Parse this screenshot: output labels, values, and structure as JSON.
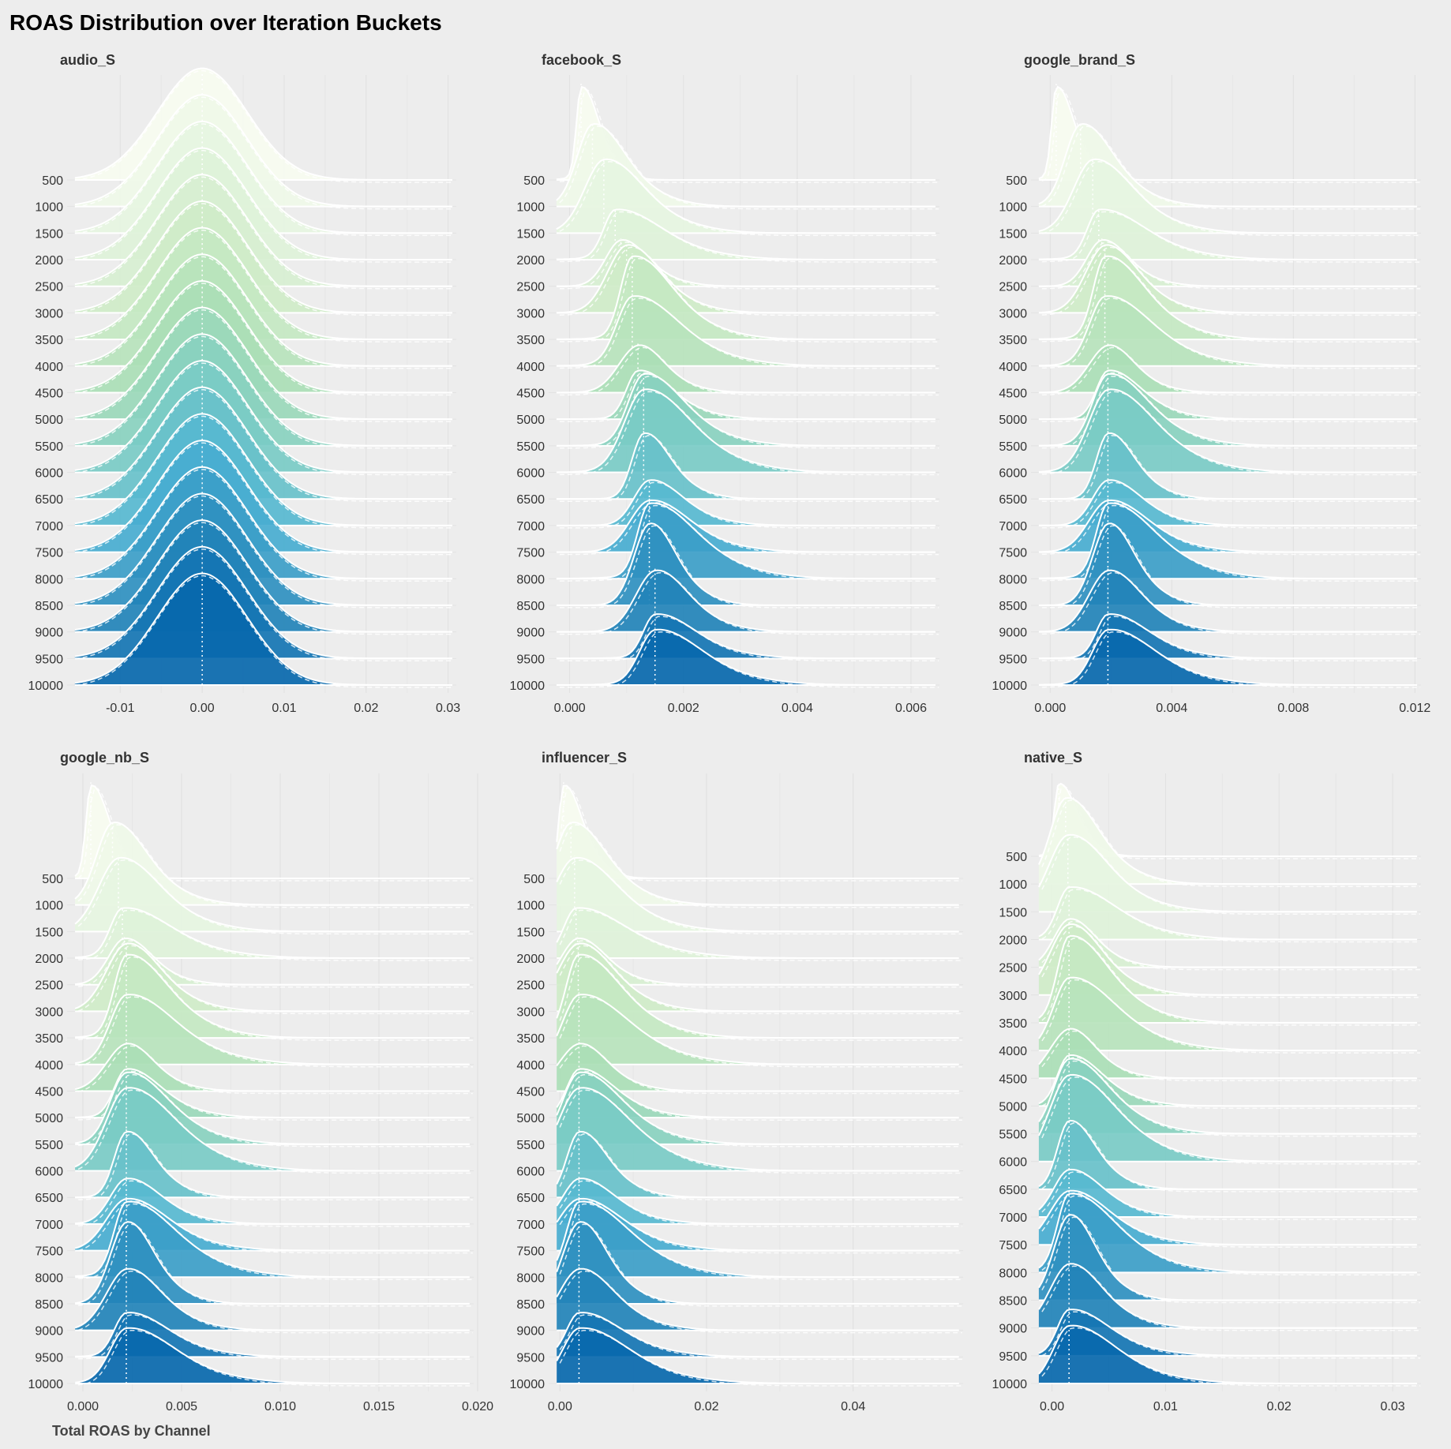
{
  "chart_data": {
    "type": "ridgeline",
    "title": "ROAS Distribution over Iteration Buckets",
    "xlabel": "Total ROAS by Channel",
    "ylabel": "",
    "iteration_buckets": [
      "500",
      "1000",
      "1500",
      "2000",
      "2500",
      "3000",
      "3500",
      "4000",
      "4500",
      "5000",
      "5500",
      "6000",
      "6500",
      "7000",
      "7500",
      "8000",
      "8500",
      "9000",
      "9500",
      "10000"
    ],
    "color_scale": [
      "#f7fcf0",
      "#e0f3db",
      "#ccebc5",
      "#a8ddb5",
      "#7bccc4",
      "#4eb3d3",
      "#2b8cbe",
      "#0868ac"
    ],
    "facets": [
      {
        "name": "audio_S",
        "xlim": [
          -0.016,
          0.031
        ],
        "ticks": [
          -0.01,
          0.0,
          0.01,
          0.02,
          0.03
        ],
        "tick_labels": [
          "-0.01",
          "0.00",
          "0.01",
          "0.02",
          "0.03"
        ],
        "peak": 0.0,
        "spread": "symmetric",
        "modes": [
          0.0,
          0.0,
          0.0,
          0.0,
          0.0,
          0.0,
          0.0,
          0.0,
          0.0,
          0.0,
          0.0,
          0.0,
          0.0,
          0.0,
          0.0,
          0.0,
          0.0,
          0.0,
          0.0,
          0.0
        ]
      },
      {
        "name": "facebook_S",
        "xlim": [
          -0.0003,
          0.0065
        ],
        "ticks": [
          0.0,
          0.002,
          0.004,
          0.006
        ],
        "tick_labels": [
          "0.000",
          "0.002",
          "0.004",
          "0.006"
        ],
        "peak": 0.0002,
        "modes": [
          0.0002,
          0.0004,
          0.0006,
          0.0008,
          0.0009,
          0.001,
          0.0011,
          0.0011,
          0.0012,
          0.0012,
          0.0013,
          0.0013,
          0.0013,
          0.0014,
          0.0014,
          0.0014,
          0.0014,
          0.0015,
          0.0015,
          0.0015
        ]
      },
      {
        "name": "google_brand_S",
        "xlim": [
          -0.0005,
          0.0122
        ],
        "ticks": [
          0.0,
          0.004,
          0.008,
          0.012
        ],
        "tick_labels": [
          "0.000",
          "0.004",
          "0.008",
          "0.012"
        ],
        "peak": 0.0002,
        "modes": [
          0.0002,
          0.001,
          0.0014,
          0.0016,
          0.0017,
          0.0018,
          0.0018,
          0.0018,
          0.0019,
          0.0019,
          0.0019,
          0.0019,
          0.0019,
          0.0019,
          0.0019,
          0.0019,
          0.0019,
          0.0019,
          0.0019,
          0.0019
        ]
      },
      {
        "name": "google_nb_S",
        "xlim": [
          -0.0006,
          0.0198
        ],
        "ticks": [
          0.0,
          0.005,
          0.01,
          0.015,
          0.02
        ],
        "tick_labels": [
          "0.000",
          "0.005",
          "0.010",
          "0.015",
          "0.020"
        ],
        "peak": 0.0004,
        "modes": [
          0.0004,
          0.0015,
          0.0018,
          0.002,
          0.0021,
          0.0022,
          0.0022,
          0.0022,
          0.0022,
          0.0022,
          0.0022,
          0.0022,
          0.0022,
          0.0022,
          0.0022,
          0.0022,
          0.0022,
          0.0022,
          0.0022,
          0.0022
        ]
      },
      {
        "name": "influencer_S",
        "xlim": [
          -0.001,
          0.055
        ],
        "ticks": [
          0.0,
          0.02,
          0.04
        ],
        "tick_labels": [
          "0.00",
          "0.02",
          "0.04"
        ],
        "peak": 0.0005,
        "modes": [
          0.0005,
          0.0015,
          0.002,
          0.0022,
          0.0024,
          0.0025,
          0.0025,
          0.0026,
          0.0026,
          0.0026,
          0.0026,
          0.0026,
          0.0026,
          0.0026,
          0.0026,
          0.0026,
          0.0026,
          0.0026,
          0.0026,
          0.0026
        ]
      },
      {
        "name": "native_S",
        "xlim": [
          -0.0015,
          0.0325
        ],
        "ticks": [
          0.0,
          0.01,
          0.02,
          0.03
        ],
        "tick_labels": [
          "0.00",
          "0.01",
          "0.02",
          "0.03"
        ],
        "peak": 0.0006,
        "modes": [
          0.0006,
          0.0012,
          0.0014,
          0.0015,
          0.0015,
          0.0015,
          0.0015,
          0.0015,
          0.0015,
          0.0015,
          0.0015,
          0.0015,
          0.0015,
          0.0015,
          0.0015,
          0.0015,
          0.0015,
          0.0015,
          0.0015,
          0.0015
        ]
      }
    ]
  }
}
